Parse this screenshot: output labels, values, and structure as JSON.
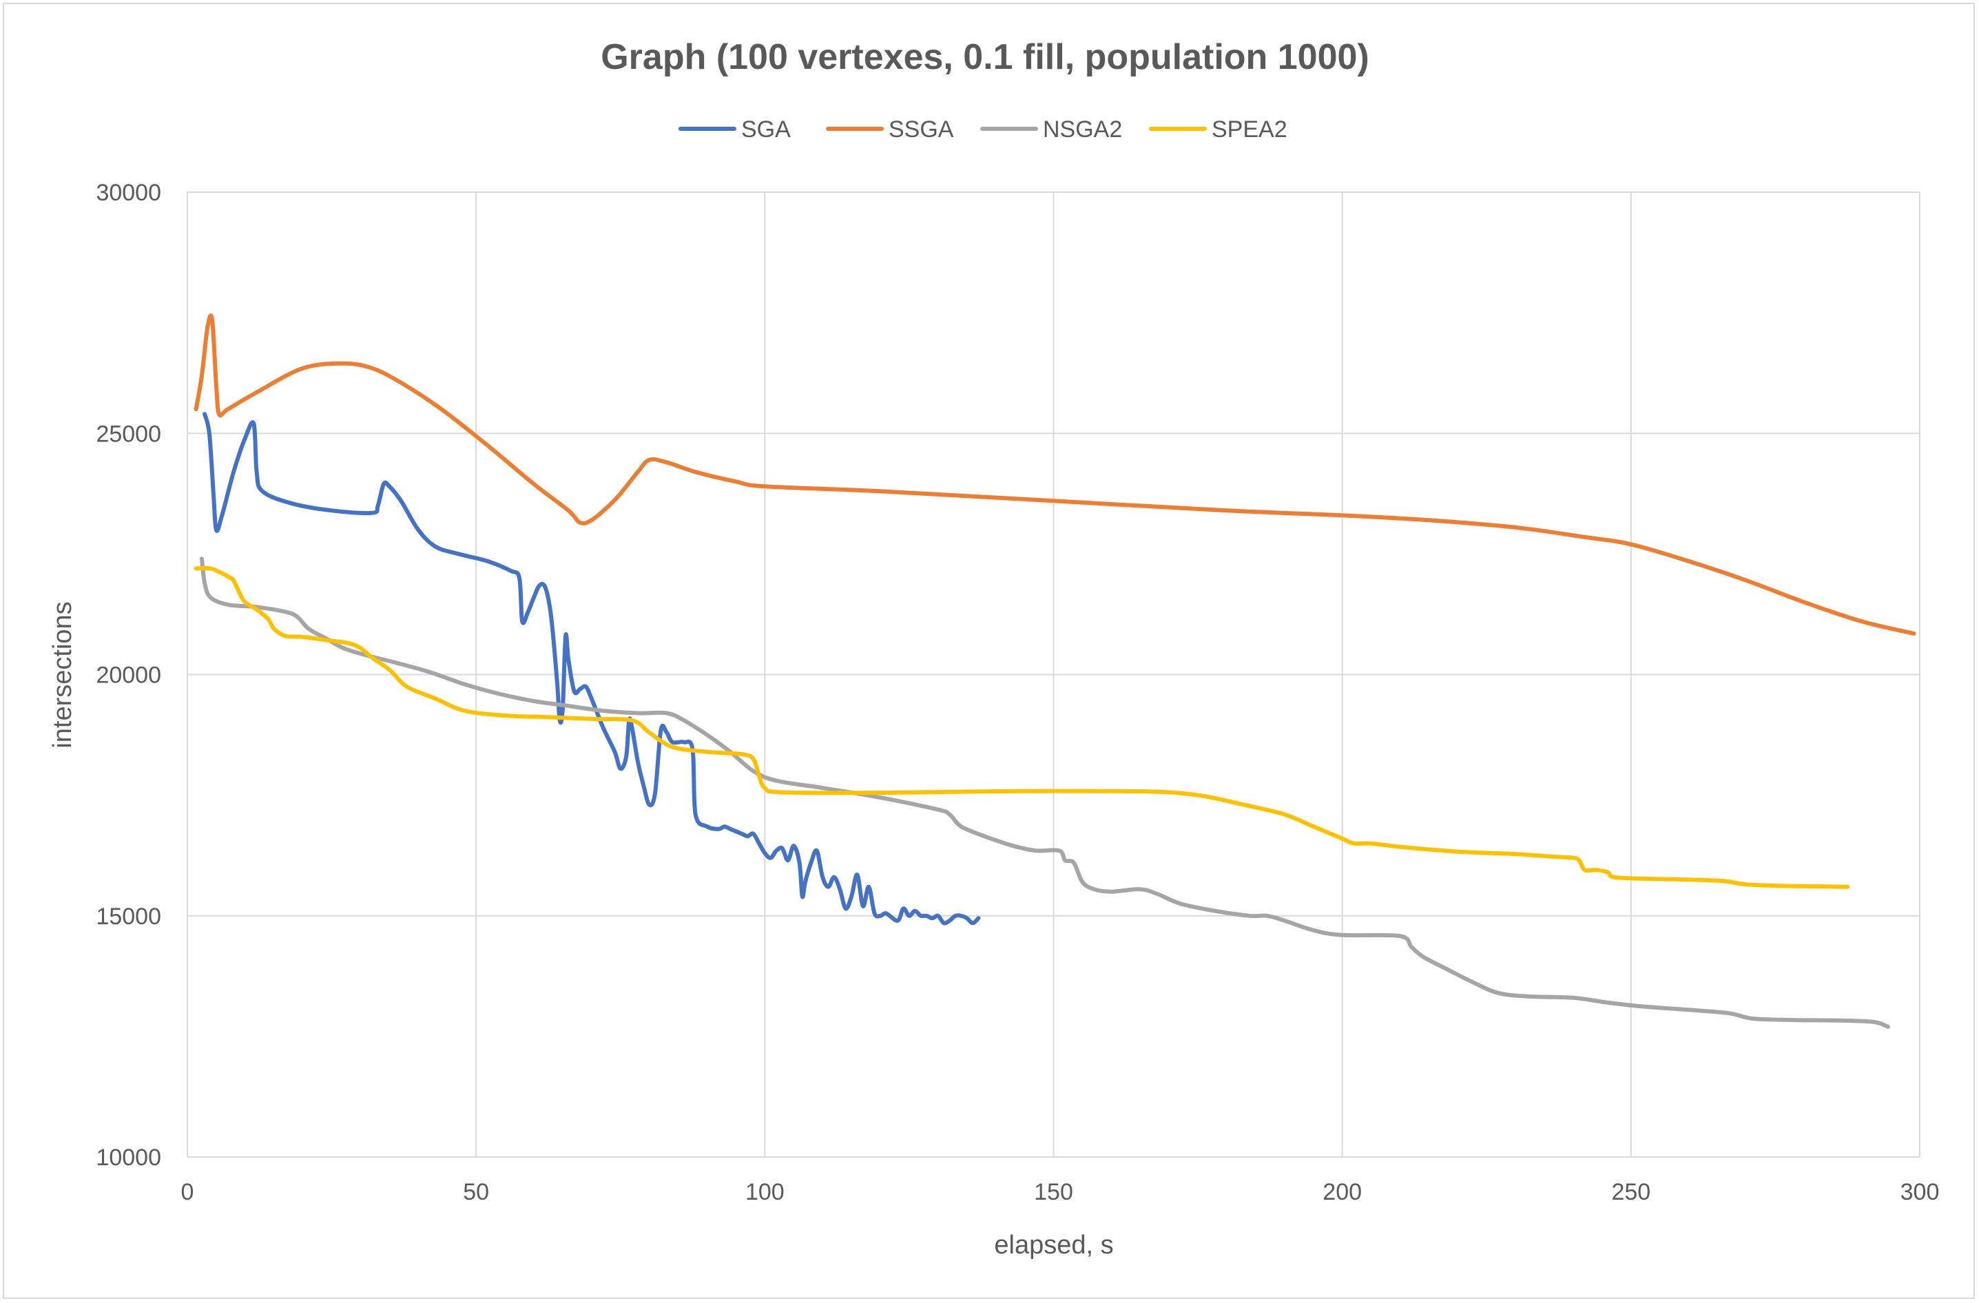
{
  "chart_data": {
    "type": "line",
    "title": "Graph (100 vertexes, 0.1 fill, population 1000)",
    "xlabel": "elapsed, s",
    "ylabel": "intersections",
    "xlim": [
      0,
      300
    ],
    "ylim": [
      10000,
      30000
    ],
    "xticks": [
      0,
      50,
      100,
      150,
      200,
      250,
      300
    ],
    "yticks": [
      10000,
      15000,
      20000,
      25000,
      30000
    ],
    "grid": true,
    "legend_position": "top",
    "series": [
      {
        "name": "SGA",
        "color": "#4472C4",
        "points": [
          [
            3,
            25400
          ],
          [
            3.8,
            25000
          ],
          [
            4.5,
            23800
          ],
          [
            5,
            23000
          ],
          [
            6,
            23300
          ],
          [
            8,
            24200
          ],
          [
            10,
            24900
          ],
          [
            11.5,
            25200
          ],
          [
            12,
            24200
          ],
          [
            13,
            23800
          ],
          [
            18,
            23550
          ],
          [
            25,
            23400
          ],
          [
            32,
            23350
          ],
          [
            33,
            23500
          ],
          [
            34,
            23950
          ],
          [
            35,
            23900
          ],
          [
            37,
            23600
          ],
          [
            40,
            23000
          ],
          [
            43,
            22650
          ],
          [
            47,
            22500
          ],
          [
            52,
            22350
          ],
          [
            56,
            22150
          ],
          [
            57.5,
            22000
          ],
          [
            58,
            21100
          ],
          [
            59,
            21300
          ],
          [
            60,
            21600
          ],
          [
            61,
            21850
          ],
          [
            62,
            21800
          ],
          [
            63,
            21200
          ],
          [
            64,
            19900
          ],
          [
            64.5,
            19050
          ],
          [
            65,
            19300
          ],
          [
            65.5,
            20800
          ],
          [
            66,
            20300
          ],
          [
            67,
            19650
          ],
          [
            68,
            19700
          ],
          [
            69,
            19750
          ],
          [
            70,
            19500
          ],
          [
            72,
            18900
          ],
          [
            74,
            18400
          ],
          [
            75,
            18050
          ],
          [
            76,
            18300
          ],
          [
            76.5,
            19050
          ],
          [
            77,
            18900
          ],
          [
            78,
            18200
          ],
          [
            79,
            17700
          ],
          [
            80,
            17300
          ],
          [
            81,
            17550
          ],
          [
            82,
            18850
          ],
          [
            83,
            18800
          ],
          [
            84,
            18600
          ],
          [
            86,
            18600
          ],
          [
            87.5,
            18450
          ],
          [
            88,
            17100
          ],
          [
            90,
            16850
          ],
          [
            92,
            16800
          ],
          [
            93,
            16850
          ],
          [
            94,
            16800
          ],
          [
            96,
            16700
          ],
          [
            97,
            16650
          ],
          [
            98,
            16700
          ],
          [
            99,
            16500
          ],
          [
            100,
            16300
          ],
          [
            101,
            16200
          ],
          [
            102,
            16350
          ],
          [
            103,
            16400
          ],
          [
            104,
            16150
          ],
          [
            105,
            16450
          ],
          [
            106,
            16100
          ],
          [
            106.5,
            15400
          ],
          [
            107,
            15700
          ],
          [
            108,
            16100
          ],
          [
            109,
            16350
          ],
          [
            110,
            15800
          ],
          [
            111,
            15600
          ],
          [
            112,
            15800
          ],
          [
            113,
            15550
          ],
          [
            114,
            15150
          ],
          [
            115,
            15400
          ],
          [
            116,
            15850
          ],
          [
            117,
            15200
          ],
          [
            118,
            15600
          ],
          [
            119,
            15050
          ],
          [
            120,
            15000
          ],
          [
            121,
            15050
          ],
          [
            123,
            14900
          ],
          [
            124,
            15150
          ],
          [
            125,
            15000
          ],
          [
            126,
            15100
          ],
          [
            127,
            15000
          ],
          [
            128,
            15000
          ],
          [
            129,
            14950
          ],
          [
            130,
            15000
          ],
          [
            131,
            14850
          ],
          [
            132,
            14900
          ],
          [
            133,
            15000
          ],
          [
            134,
            15000
          ],
          [
            135,
            14950
          ],
          [
            136,
            14850
          ],
          [
            137,
            14950
          ]
        ]
      },
      {
        "name": "SSGA",
        "color": "#ED7D31",
        "points": [
          [
            1.5,
            25500
          ],
          [
            2.5,
            26200
          ],
          [
            3.5,
            27200
          ],
          [
            4.3,
            27350
          ],
          [
            5,
            26000
          ],
          [
            5.5,
            25400
          ],
          [
            7,
            25500
          ],
          [
            12,
            25850
          ],
          [
            20,
            26350
          ],
          [
            27,
            26450
          ],
          [
            32,
            26350
          ],
          [
            37,
            26050
          ],
          [
            44,
            25500
          ],
          [
            52,
            24750
          ],
          [
            60,
            23950
          ],
          [
            66,
            23400
          ],
          [
            68,
            23150
          ],
          [
            70,
            23200
          ],
          [
            73,
            23500
          ],
          [
            75,
            23750
          ],
          [
            78,
            24200
          ],
          [
            80,
            24450
          ],
          [
            83,
            24400
          ],
          [
            88,
            24200
          ],
          [
            95,
            24000
          ],
          [
            100,
            23900
          ],
          [
            120,
            23800
          ],
          [
            150,
            23600
          ],
          [
            180,
            23400
          ],
          [
            200,
            23300
          ],
          [
            215,
            23200
          ],
          [
            230,
            23050
          ],
          [
            242,
            22850
          ],
          [
            250,
            22700
          ],
          [
            260,
            22350
          ],
          [
            270,
            21950
          ],
          [
            280,
            21500
          ],
          [
            290,
            21100
          ],
          [
            299,
            20850
          ]
        ]
      },
      {
        "name": "NSGA2",
        "color": "#A5A5A5",
        "points": [
          [
            2.5,
            22400
          ],
          [
            3,
            21900
          ],
          [
            4,
            21600
          ],
          [
            7,
            21450
          ],
          [
            12,
            21400
          ],
          [
            17,
            21300
          ],
          [
            19,
            21200
          ],
          [
            21,
            20950
          ],
          [
            24,
            20750
          ],
          [
            27,
            20550
          ],
          [
            31,
            20400
          ],
          [
            36,
            20250
          ],
          [
            42,
            20050
          ],
          [
            48,
            19800
          ],
          [
            54,
            19600
          ],
          [
            60,
            19450
          ],
          [
            66,
            19350
          ],
          [
            72,
            19250
          ],
          [
            78,
            19200
          ],
          [
            83,
            19200
          ],
          [
            86,
            19050
          ],
          [
            90,
            18750
          ],
          [
            94,
            18400
          ],
          [
            98,
            18000
          ],
          [
            102,
            17800
          ],
          [
            110,
            17650
          ],
          [
            120,
            17450
          ],
          [
            130,
            17200
          ],
          [
            132,
            17100
          ],
          [
            134,
            16850
          ],
          [
            138,
            16650
          ],
          [
            143,
            16450
          ],
          [
            147,
            16350
          ],
          [
            151,
            16350
          ],
          [
            152,
            16150
          ],
          [
            153.5,
            16100
          ],
          [
            155,
            15700
          ],
          [
            157,
            15550
          ],
          [
            160,
            15500
          ],
          [
            165,
            15550
          ],
          [
            168,
            15450
          ],
          [
            172,
            15250
          ],
          [
            178,
            15100
          ],
          [
            184,
            15000
          ],
          [
            187,
            15000
          ],
          [
            190,
            14900
          ],
          [
            195,
            14700
          ],
          [
            200,
            14600
          ],
          [
            210,
            14580
          ],
          [
            212,
            14350
          ],
          [
            214,
            14150
          ],
          [
            218,
            13900
          ],
          [
            223,
            13600
          ],
          [
            227,
            13400
          ],
          [
            232,
            13330
          ],
          [
            240,
            13300
          ],
          [
            246,
            13200
          ],
          [
            252,
            13120
          ],
          [
            260,
            13050
          ],
          [
            267,
            12980
          ],
          [
            271,
            12870
          ],
          [
            278,
            12840
          ],
          [
            286,
            12830
          ],
          [
            292,
            12800
          ],
          [
            294.5,
            12700
          ]
        ]
      },
      {
        "name": "SPEA2",
        "color": "#FFC000",
        "points": [
          [
            1.5,
            22200
          ],
          [
            4,
            22200
          ],
          [
            6,
            22100
          ],
          [
            7.5,
            22000
          ],
          [
            8,
            21950
          ],
          [
            9,
            21700
          ],
          [
            10,
            21500
          ],
          [
            12,
            21350
          ],
          [
            14,
            21150
          ],
          [
            15,
            20950
          ],
          [
            17,
            20800
          ],
          [
            20,
            20780
          ],
          [
            25,
            20700
          ],
          [
            28,
            20650
          ],
          [
            30,
            20550
          ],
          [
            32,
            20350
          ],
          [
            35,
            20100
          ],
          [
            38,
            19750
          ],
          [
            43,
            19500
          ],
          [
            48,
            19250
          ],
          [
            55,
            19150
          ],
          [
            62,
            19120
          ],
          [
            70,
            19080
          ],
          [
            77,
            19050
          ],
          [
            80,
            18800
          ],
          [
            84,
            18500
          ],
          [
            90,
            18400
          ],
          [
            96,
            18350
          ],
          [
            98,
            18250
          ],
          [
            99,
            17900
          ],
          [
            100,
            17650
          ],
          [
            103,
            17560
          ],
          [
            120,
            17550
          ],
          [
            140,
            17580
          ],
          [
            165,
            17580
          ],
          [
            175,
            17500
          ],
          [
            183,
            17300
          ],
          [
            190,
            17100
          ],
          [
            195,
            16850
          ],
          [
            200,
            16600
          ],
          [
            202,
            16500
          ],
          [
            205,
            16500
          ],
          [
            210,
            16430
          ],
          [
            220,
            16330
          ],
          [
            230,
            16280
          ],
          [
            236,
            16230
          ],
          [
            240,
            16200
          ],
          [
            241,
            16150
          ],
          [
            242,
            15950
          ],
          [
            244,
            15950
          ],
          [
            246,
            15900
          ],
          [
            247,
            15800
          ],
          [
            252,
            15770
          ],
          [
            260,
            15750
          ],
          [
            266,
            15720
          ],
          [
            270,
            15650
          ],
          [
            276,
            15620
          ],
          [
            282,
            15610
          ],
          [
            287.5,
            15600
          ]
        ]
      }
    ]
  }
}
